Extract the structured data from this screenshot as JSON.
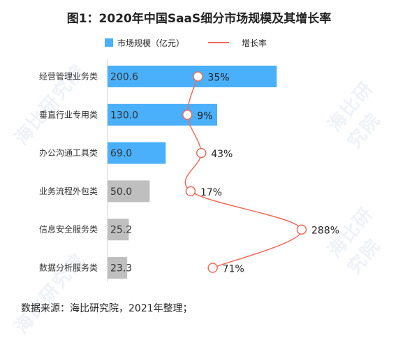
{
  "chart_data": {
    "type": "bar",
    "title": "图1：2020年中国SaaS细分市场规模及其增长率",
    "categories": [
      "经营管理业务类",
      "垂直行业专用类",
      "办公沟通工具类",
      "业务流程外包类",
      "信息安全服务类",
      "数据分析服务类"
    ],
    "series": [
      {
        "name": "市场规模（亿元）",
        "type": "bar",
        "values": [
          200.6,
          130.0,
          69.0,
          50.0,
          25.2,
          23.3
        ],
        "value_labels": [
          "200.6",
          "130.0",
          "69.0",
          "50.0",
          "25.2",
          "23.3"
        ]
      },
      {
        "name": "增长率",
        "type": "line",
        "values": [
          35,
          9,
          43,
          17,
          288,
          71
        ],
        "value_labels": [
          "35%",
          "9%",
          "43%",
          "17%",
          "288%",
          "71%"
        ]
      }
    ],
    "bar_colors": [
      "#4ab0fb",
      "#4ab0fb",
      "#4ab0fb",
      "#bfbfbf",
      "#bfbfbf",
      "#bfbfbf"
    ],
    "line_color": "#ee6b5a",
    "orientation": "horizontal",
    "legend_position": "top",
    "grid": false
  },
  "source_text": "数据来源：海比研究院，2021年整理；",
  "watermark_text": "海比研究院"
}
